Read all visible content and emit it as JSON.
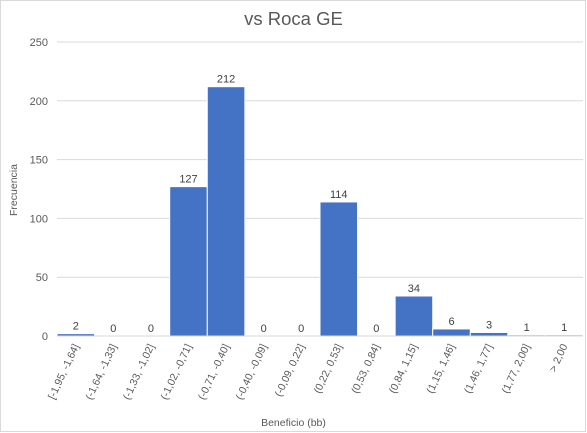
{
  "chart_data": {
    "type": "bar",
    "title": "vs Roca GE",
    "xlabel": "Beneficio (bb)",
    "ylabel": "Frecuencia",
    "ylim": [
      0,
      250
    ],
    "yticks": [
      "0",
      "50",
      "100",
      "150",
      "200",
      "250"
    ],
    "grid": true,
    "legend": "none",
    "bar_color": "#4472c4",
    "categories": [
      "[-1,95, -1,64]",
      "(-1,64, -1,33]",
      "(-1,33, -1,02]",
      "(-1,02, -0,71]",
      "(-0,71, -0,40]",
      "(-0,40, -0,09]",
      "(-0,09, 0,22]",
      "(0,22, 0,53]",
      "(0,53, 0,84]",
      "(0,84, 1,15]",
      "(1,15, 1,46]",
      "(1,46, 1,77]",
      "(1,77, 2,00]",
      "> 2,00"
    ],
    "values": [
      2,
      0,
      0,
      127,
      212,
      0,
      0,
      114,
      0,
      34,
      6,
      3,
      1,
      1
    ],
    "data_labels": [
      "2",
      "0",
      "0",
      "127",
      "212",
      "0",
      "0",
      "114",
      "0",
      "34",
      "6",
      "3",
      "1",
      "1"
    ]
  }
}
